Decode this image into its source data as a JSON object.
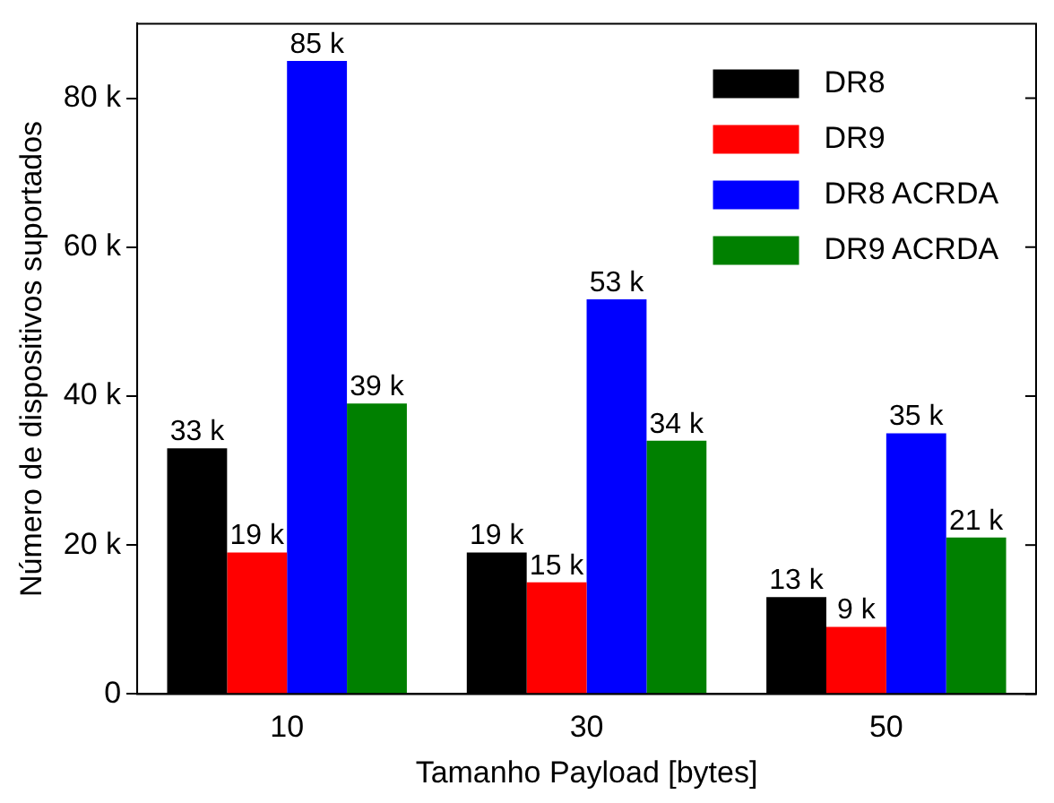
{
  "chart_data": {
    "type": "bar",
    "xlabel": "Tamanho Payload [bytes]",
    "ylabel": "Número de dispositivos suportados",
    "categories": [
      "10",
      "30",
      "50"
    ],
    "series": [
      {
        "name": "DR8",
        "color": "#000000",
        "values": [
          33000,
          19000,
          13000
        ],
        "value_labels": [
          "33 k",
          "19 k",
          "13 k"
        ]
      },
      {
        "name": "DR9",
        "color": "#ff0000",
        "values": [
          19000,
          15000,
          9000
        ],
        "value_labels": [
          "19 k",
          "15 k",
          "9 k"
        ]
      },
      {
        "name": "DR8 ACRDA",
        "color": "#0000ff",
        "values": [
          85000,
          53000,
          35000
        ],
        "value_labels": [
          "85 k",
          "53 k",
          "35 k"
        ]
      },
      {
        "name": "DR9 ACRDA",
        "color": "#008000",
        "values": [
          39000,
          34000,
          21000
        ],
        "value_labels": [
          "39 k",
          "34 k",
          "21 k"
        ]
      }
    ],
    "ylim": [
      0,
      90000
    ],
    "yticks": [
      {
        "value": 0,
        "label": "0"
      },
      {
        "value": 20000,
        "label": "20 k"
      },
      {
        "value": 40000,
        "label": "40 k"
      },
      {
        "value": 60000,
        "label": "60 k"
      },
      {
        "value": 80000,
        "label": "80 k"
      }
    ],
    "grid": false,
    "legend": "top right"
  }
}
